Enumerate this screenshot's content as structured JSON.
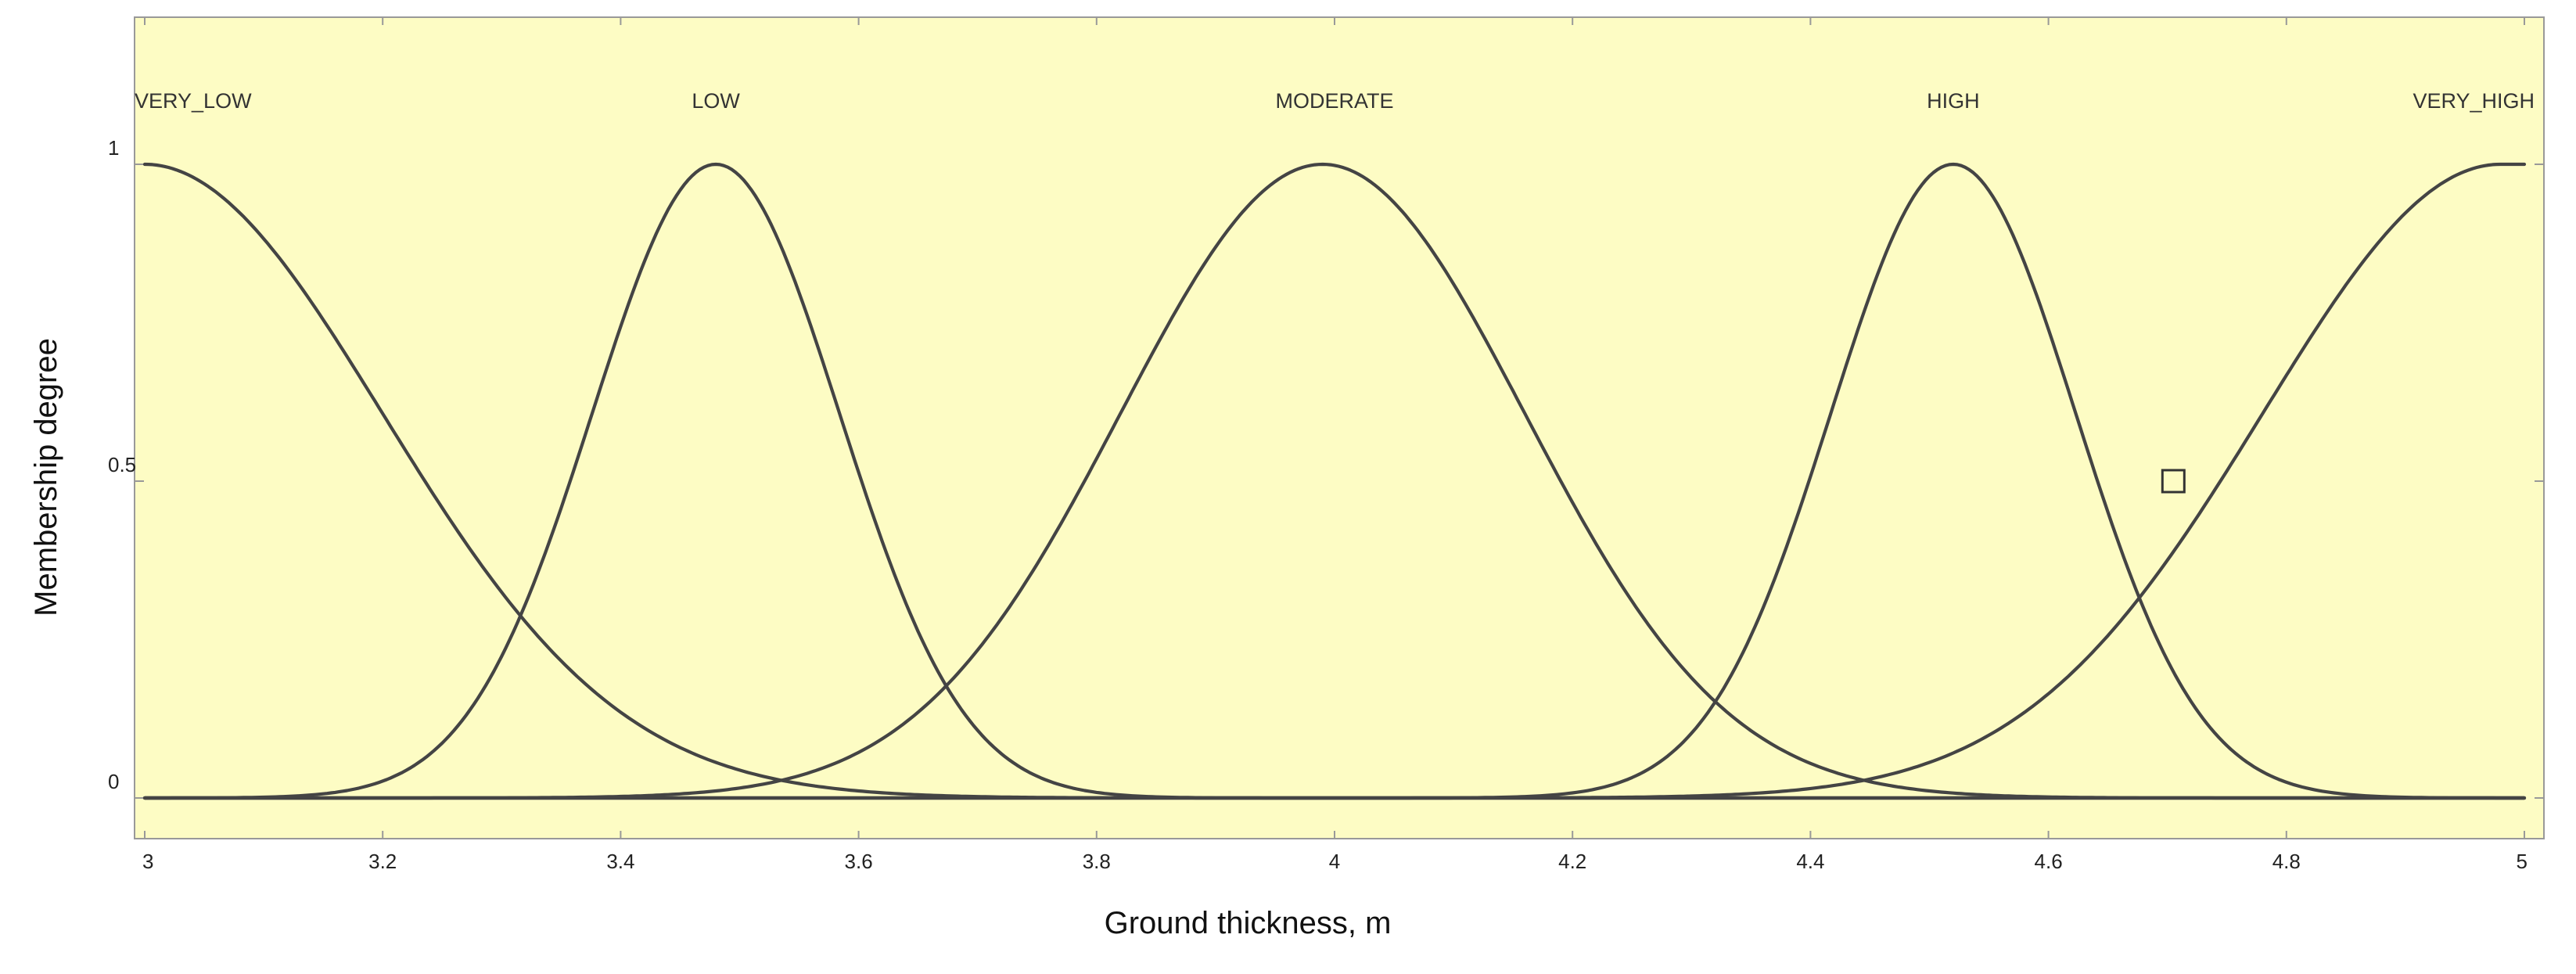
{
  "chart_data": {
    "type": "line",
    "title": "",
    "xlabel": "Ground thickness, m",
    "ylabel": "Membership degree",
    "xlim": [
      3,
      5
    ],
    "ylim": [
      0,
      1
    ],
    "x_ticks": [
      "3",
      "3.2",
      "3.4",
      "3.6",
      "3.8",
      "4",
      "4.2",
      "4.4",
      "4.6",
      "4.8",
      "5"
    ],
    "y_ticks": [
      "0",
      "0.5",
      "1"
    ],
    "grid": false,
    "plot_background": "#fdfcc4",
    "line_color": "#444444",
    "series": [
      {
        "name": "VERY_LOW",
        "shape": "gaussian-left-shoulder",
        "center": 3.0,
        "sigma": 0.2,
        "label_x": 3.05
      },
      {
        "name": "LOW",
        "shape": "gaussian",
        "center": 3.48,
        "sigma": 0.104,
        "label_x": 3.48
      },
      {
        "name": "MODERATE",
        "shape": "gaussian",
        "center": 3.99,
        "sigma": 0.17,
        "label_x": 4.0
      },
      {
        "name": "HIGH",
        "shape": "gaussian",
        "center": 4.52,
        "sigma": 0.103,
        "label_x": 4.52
      },
      {
        "name": "VERY_HIGH",
        "shape": "gaussian-right-shoulder",
        "center": 4.98,
        "sigma": 0.2,
        "label_x": 4.94
      }
    ],
    "marker": {
      "shape": "square",
      "x": 4.705,
      "y": 0.5
    }
  }
}
